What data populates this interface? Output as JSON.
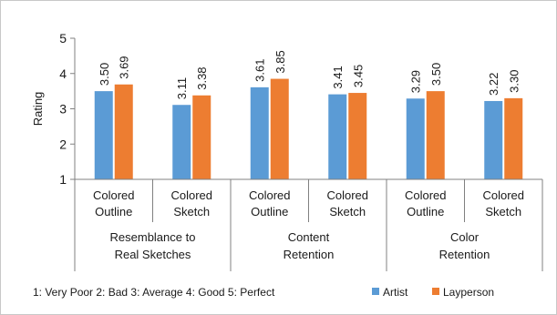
{
  "chart_data": {
    "type": "bar",
    "title": "",
    "xlabel": "",
    "ylabel": "Rating",
    "ylim": [
      1,
      5
    ],
    "yticks": [
      1,
      2,
      3,
      4,
      5
    ],
    "grid": false,
    "groups": [
      {
        "label": [
          "Resemblance to",
          "Real Sketches"
        ],
        "categories": [
          [
            "Colored",
            "Outline"
          ],
          [
            "Colored",
            "Sketch"
          ]
        ]
      },
      {
        "label": [
          "Content",
          "Retention"
        ],
        "categories": [
          [
            "Colored",
            "Outline"
          ],
          [
            "Colored",
            "Sketch"
          ]
        ]
      },
      {
        "label": [
          "Color",
          "Retention"
        ],
        "categories": [
          [
            "Colored",
            "Outline"
          ],
          [
            "Colored",
            "Sketch"
          ]
        ]
      }
    ],
    "series": [
      {
        "name": "Artist",
        "color": "#5b9bd5",
        "values": [
          3.5,
          3.11,
          3.61,
          3.41,
          3.29,
          3.22
        ]
      },
      {
        "name": "Layperson",
        "color": "#ed7d31",
        "values": [
          3.69,
          3.38,
          3.85,
          3.45,
          3.5,
          3.3
        ]
      }
    ],
    "value_labels": {
      "Artist": [
        "3.50",
        "3.11",
        "3.61",
        "3.41",
        "3.29",
        "3.22"
      ],
      "Layperson": [
        "3.69",
        "3.38",
        "3.85",
        "3.45",
        "3.50",
        "3.30"
      ]
    },
    "scale_note": "1: Very Poor   2: Bad   3: Average   4: Good   5: Perfect",
    "legend_position": "bottom"
  }
}
